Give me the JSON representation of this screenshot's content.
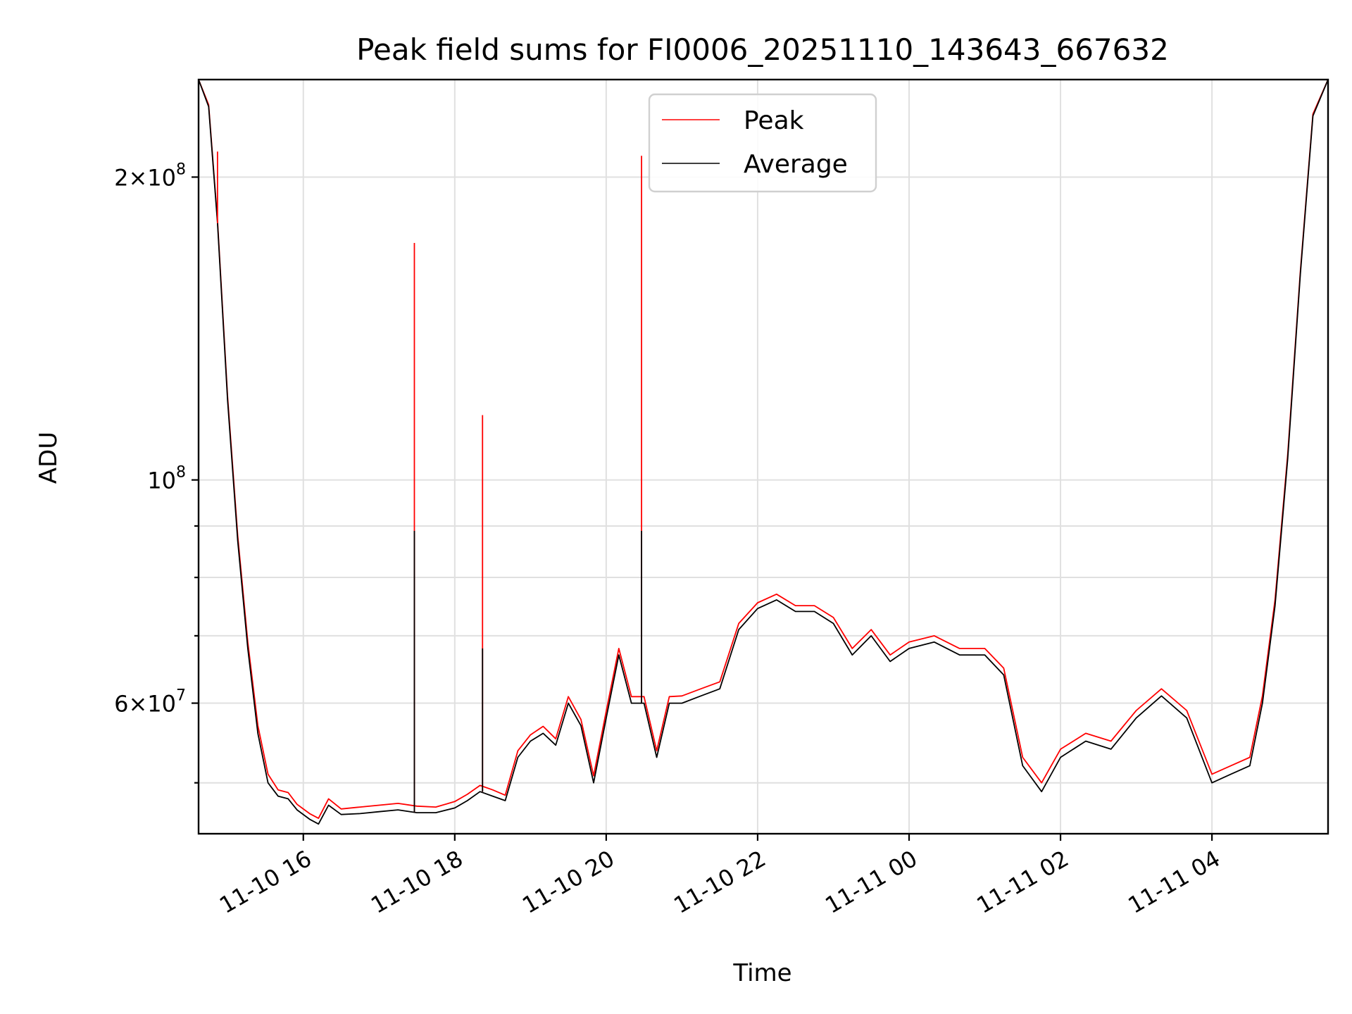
{
  "chart_data": {
    "type": "line",
    "title": "Peak field sums for FI0006_20251110_143643_667632",
    "xlabel": "Time",
    "ylabel": "ADU",
    "y_scale": "log",
    "xlim": [
      "2025-11-10 14:37",
      "2025-11-11 05:32"
    ],
    "ylim": [
      44500000,
      250000000
    ],
    "grid": true,
    "legend": {
      "placement": "upper-center",
      "entries": [
        "Peak",
        "Average"
      ]
    },
    "x_tick_labels": [
      "11-10 16",
      "11-10 18",
      "11-10 20",
      "11-10 22",
      "11-11 00",
      "11-11 02",
      "11-11 04"
    ],
    "x_ticks": [
      "2025-11-10 16:00",
      "2025-11-10 18:00",
      "2025-11-10 20:00",
      "2025-11-10 22:00",
      "2025-11-11 00:00",
      "2025-11-11 02:00",
      "2025-11-11 04:00"
    ],
    "y_major_ticks": [
      {
        "value": 200000000,
        "label_mantissa": "2",
        "label_base": "10",
        "label_exp": "8"
      },
      {
        "value": 100000000,
        "label_mantissa": "",
        "label_base": "10",
        "label_exp": "8"
      },
      {
        "value": 60000000,
        "label_mantissa": "6",
        "label_base": "10",
        "label_exp": "7"
      }
    ],
    "y_minor_ticks": [
      50000000,
      70000000,
      80000000,
      90000000
    ],
    "series": [
      {
        "name": "Average",
        "color": "#000000",
        "x": [
          "2025-11-10 14:37",
          "2025-11-10 14:45",
          "2025-11-10 14:52",
          "2025-11-10 15:00",
          "2025-11-10 15:08",
          "2025-11-10 15:16",
          "2025-11-10 15:24",
          "2025-11-10 15:32",
          "2025-11-10 15:40",
          "2025-11-10 15:48",
          "2025-11-10 15:55",
          "2025-11-10 16:05",
          "2025-11-10 16:12",
          "2025-11-10 16:20",
          "2025-11-10 16:30",
          "2025-11-10 16:45",
          "2025-11-10 17:00",
          "2025-11-10 17:15",
          "2025-11-10 17:30",
          "2025-11-10 17:45",
          "2025-11-10 18:00",
          "2025-11-10 18:10",
          "2025-11-10 18:20",
          "2025-11-10 18:30",
          "2025-11-10 18:40",
          "2025-11-10 18:50",
          "2025-11-10 19:00",
          "2025-11-10 19:10",
          "2025-11-10 19:20",
          "2025-11-10 19:30",
          "2025-11-10 19:40",
          "2025-11-10 19:50",
          "2025-11-10 20:00",
          "2025-11-10 20:10",
          "2025-11-10 20:20",
          "2025-11-10 20:30",
          "2025-11-10 20:40",
          "2025-11-10 20:50",
          "2025-11-10 21:00",
          "2025-11-10 21:15",
          "2025-11-10 21:30",
          "2025-11-10 21:45",
          "2025-11-10 22:00",
          "2025-11-10 22:15",
          "2025-11-10 22:30",
          "2025-11-10 22:45",
          "2025-11-10 23:00",
          "2025-11-10 23:15",
          "2025-11-10 23:30",
          "2025-11-10 23:45",
          "2025-11-11 00:00",
          "2025-11-11 00:20",
          "2025-11-11 00:40",
          "2025-11-11 01:00",
          "2025-11-11 01:15",
          "2025-11-11 01:30",
          "2025-11-11 01:45",
          "2025-11-11 02:00",
          "2025-11-11 02:20",
          "2025-11-11 02:40",
          "2025-11-11 03:00",
          "2025-11-11 03:20",
          "2025-11-11 03:40",
          "2025-11-11 04:00",
          "2025-11-11 04:15",
          "2025-11-11 04:30",
          "2025-11-11 04:40",
          "2025-11-11 04:50",
          "2025-11-11 05:00",
          "2025-11-11 05:10",
          "2025-11-11 05:20",
          "2025-11-11 05:32"
        ],
        "values": [
          250000000,
          235000000,
          180000000,
          120000000,
          87000000,
          68000000,
          56000000,
          50000000,
          48500000,
          48200000,
          47000000,
          46000000,
          45500000,
          47500000,
          46500000,
          46600000,
          46800000,
          47000000,
          46700000,
          46700000,
          47200000,
          48000000,
          49000000,
          48500000,
          48000000,
          53000000,
          55000000,
          56000000,
          54500000,
          60000000,
          57000000,
          50000000,
          58000000,
          67000000,
          60000000,
          60000000,
          53000000,
          60000000,
          60000000,
          61000000,
          62000000,
          71000000,
          74500000,
          76000000,
          74000000,
          74000000,
          72000000,
          67000000,
          70000000,
          66000000,
          68000000,
          69000000,
          67000000,
          67000000,
          64000000,
          52000000,
          49000000,
          53000000,
          55000000,
          54000000,
          58000000,
          61000000,
          58000000,
          50000000,
          51000000,
          52000000,
          60000000,
          75000000,
          105000000,
          160000000,
          230000000,
          250000000
        ]
      },
      {
        "name": "Peak",
        "color": "#ff0000",
        "x": [
          "2025-11-10 14:37",
          "2025-11-10 14:45",
          "2025-11-10 14:52",
          "2025-11-10 15:00",
          "2025-11-10 15:08",
          "2025-11-10 15:16",
          "2025-11-10 15:24",
          "2025-11-10 15:32",
          "2025-11-10 15:40",
          "2025-11-10 15:48",
          "2025-11-10 15:55",
          "2025-11-10 16:05",
          "2025-11-10 16:12",
          "2025-11-10 16:20",
          "2025-11-10 16:30",
          "2025-11-10 16:45",
          "2025-11-10 17:00",
          "2025-11-10 17:15",
          "2025-11-10 17:30",
          "2025-11-10 17:45",
          "2025-11-10 18:00",
          "2025-11-10 18:10",
          "2025-11-10 18:20",
          "2025-11-10 18:30",
          "2025-11-10 18:40",
          "2025-11-10 18:50",
          "2025-11-10 19:00",
          "2025-11-10 19:10",
          "2025-11-10 19:20",
          "2025-11-10 19:30",
          "2025-11-10 19:40",
          "2025-11-10 19:50",
          "2025-11-10 20:00",
          "2025-11-10 20:10",
          "2025-11-10 20:20",
          "2025-11-10 20:30",
          "2025-11-10 20:40",
          "2025-11-10 20:50",
          "2025-11-10 21:00",
          "2025-11-10 21:15",
          "2025-11-10 21:30",
          "2025-11-10 21:45",
          "2025-11-10 22:00",
          "2025-11-10 22:15",
          "2025-11-10 22:30",
          "2025-11-10 22:45",
          "2025-11-10 23:00",
          "2025-11-10 23:15",
          "2025-11-10 23:30",
          "2025-11-10 23:45",
          "2025-11-11 00:00",
          "2025-11-11 00:20",
          "2025-11-11 00:40",
          "2025-11-11 01:00",
          "2025-11-11 01:15",
          "2025-11-11 01:30",
          "2025-11-11 01:45",
          "2025-11-11 02:00",
          "2025-11-11 02:20",
          "2025-11-11 02:40",
          "2025-11-11 03:00",
          "2025-11-11 03:20",
          "2025-11-11 03:40",
          "2025-11-11 04:00",
          "2025-11-11 04:15",
          "2025-11-11 04:30",
          "2025-11-11 04:40",
          "2025-11-11 04:50",
          "2025-11-11 05:00",
          "2025-11-11 05:10",
          "2025-11-11 05:20",
          "2025-11-11 05:32"
        ],
        "values": [
          250000000,
          236000000,
          181000000,
          121000000,
          88000000,
          69000000,
          57000000,
          51000000,
          49200000,
          48900000,
          47600000,
          46600000,
          46100000,
          48200000,
          47100000,
          47300000,
          47500000,
          47700000,
          47400000,
          47300000,
          47900000,
          48700000,
          49700000,
          49200000,
          48600000,
          53800000,
          55800000,
          56900000,
          55300000,
          60900000,
          57800000,
          50800000,
          58900000,
          68000000,
          60900000,
          60900000,
          53800000,
          60900000,
          61000000,
          62000000,
          63000000,
          72000000,
          75500000,
          77000000,
          75000000,
          75000000,
          73000000,
          68000000,
          71000000,
          67000000,
          69000000,
          70000000,
          68000000,
          68000000,
          65000000,
          53000000,
          50000000,
          54000000,
          56000000,
          55000000,
          59000000,
          62000000,
          59000000,
          51000000,
          52000000,
          53000000,
          61000000,
          76000000,
          106000000,
          161000000,
          231000000,
          250000000
        ],
        "spikes": [
          {
            "x": "2025-11-10 14:52",
            "peak": 212000000,
            "average": 180000000
          },
          {
            "x": "2025-11-10 17:28",
            "peak": 172000000,
            "average": 89000000
          },
          {
            "x": "2025-11-10 18:22",
            "peak": 116000000,
            "average": 68000000
          },
          {
            "x": "2025-11-10 20:28",
            "peak": 210000000,
            "average": 89000000
          }
        ]
      }
    ]
  }
}
